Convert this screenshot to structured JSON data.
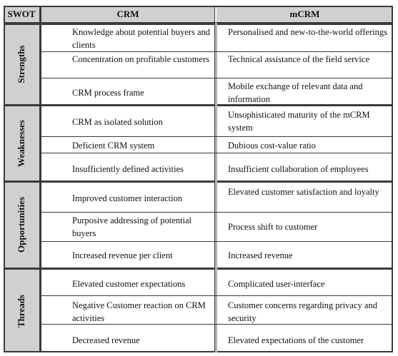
{
  "headers": {
    "swot": "SWOT",
    "crm": "CRM",
    "mcrm": "mCRM"
  },
  "groups": [
    {
      "label": "Strengths",
      "rows": [
        {
          "crm": "Knowledge about potential buyers and clients",
          "mcrm": "Personalised and new-to-the-world offerings"
        },
        {
          "crm": "Concentration on profitable customers",
          "mcrm": "Technical assistance of the field service"
        },
        {
          "crm": "CRM process frame",
          "mcrm": "Mobile exchange of relevant data and information"
        }
      ]
    },
    {
      "label": "Weaknesses",
      "rows": [
        {
          "crm": "CRM as isolated solution",
          "mcrm": "Unsophisticated maturity of the mCRM system"
        },
        {
          "crm": "Deficient CRM system",
          "mcrm": "Dubious cost-value ratio"
        },
        {
          "crm": "Insufficiently defined activities",
          "mcrm": "Insufficient collaboration of employees"
        }
      ]
    },
    {
      "label": "Opportunities",
      "rows": [
        {
          "crm": "Improved customer interaction",
          "mcrm": "Elevated customer satisfaction and loyalty"
        },
        {
          "crm": "Purposive addressing of potential buyers",
          "mcrm": "Process shift to customer"
        },
        {
          "crm": "Increased revenue per client",
          "mcrm": "Increased revenue"
        }
      ]
    },
    {
      "label": "Threads",
      "rows": [
        {
          "crm": "Elevated customer expectations",
          "mcrm": "Complicated user-interface"
        },
        {
          "crm": "Negative Customer reaction on CRM activities",
          "mcrm": "Customer concerns regarding privacy and security"
        },
        {
          "crm": "Decreased revenue",
          "mcrm": "Elevated expectations of the customer"
        }
      ]
    }
  ]
}
